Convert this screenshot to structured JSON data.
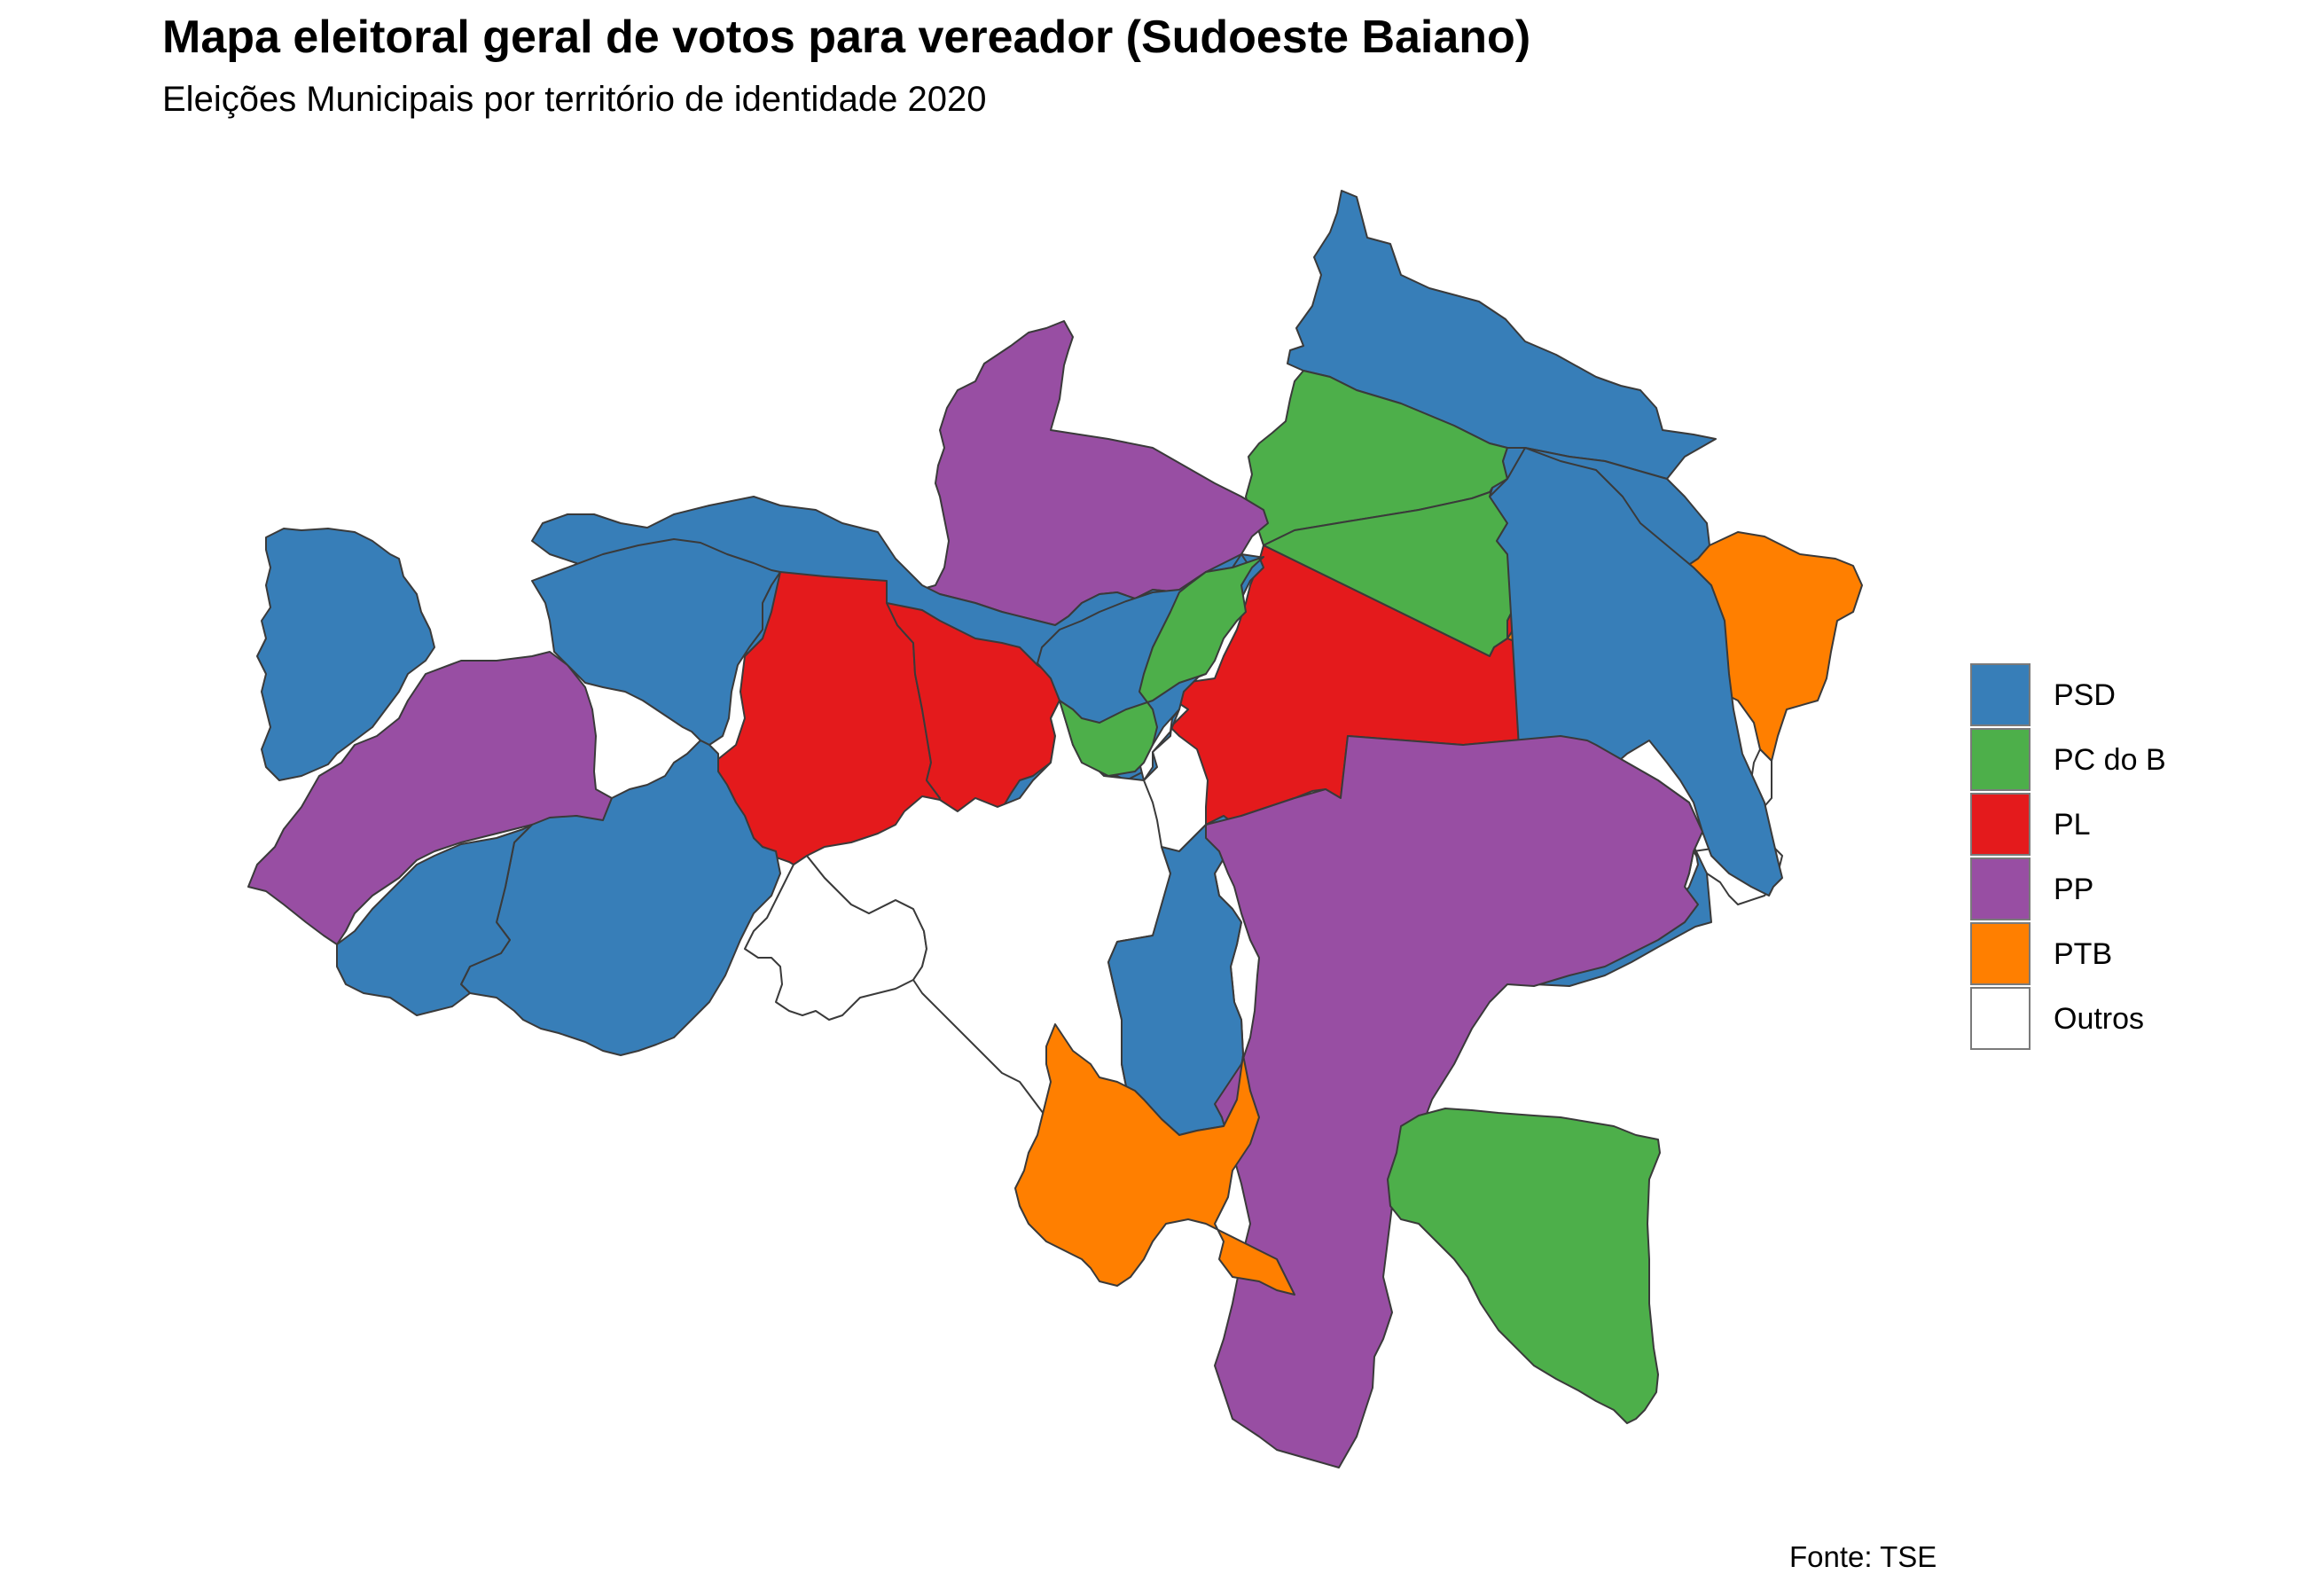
{
  "title": "Mapa eleitoral geral de votos para vereador (Sudoeste Baiano)",
  "subtitle": "Eleições Municipais por território de identidade 2020",
  "caption": "Fonte: TSE",
  "colors": {
    "PSD": "#377eb8",
    "PC do B": "#4daf4a",
    "PL": "#e41a1c",
    "PP": "#984ea3",
    "PTB": "#ff7f00",
    "Outros": "#ffffff"
  },
  "legend": [
    {
      "party": "PSD",
      "label": "PSD",
      "color": "#377eb8"
    },
    {
      "party": "PC do B",
      "label": "PC do B",
      "color": "#4daf4a"
    },
    {
      "party": "PL",
      "label": "PL",
      "color": "#e41a1c"
    },
    {
      "party": "PP",
      "label": "PP",
      "color": "#984ea3"
    },
    {
      "party": "PTB",
      "label": "PTB",
      "color": "#ff7f00"
    },
    {
      "party": "Outros",
      "label": "Outros",
      "color": "#ffffff"
    }
  ],
  "regions": [
    {
      "party": "PSD"
    },
    {
      "party": "PC do B"
    },
    {
      "party": "PSD"
    },
    {
      "party": "PC do B"
    },
    {
      "party": "PTB"
    },
    {
      "party": "PL"
    },
    {
      "party": "Outros"
    },
    {
      "party": "PP"
    },
    {
      "party": "PSD"
    },
    {
      "party": "PL"
    },
    {
      "party": "PL"
    },
    {
      "party": "PSD"
    },
    {
      "party": "PSD"
    },
    {
      "party": "PP"
    },
    {
      "party": "PSD"
    },
    {
      "party": "PSD"
    },
    {
      "party": "PSD"
    },
    {
      "party": "PSD"
    },
    {
      "party": "Outros"
    },
    {
      "party": "Outros"
    },
    {
      "party": "PSD"
    },
    {
      "party": "PSD"
    },
    {
      "party": "PC do B"
    },
    {
      "party": "PP"
    },
    {
      "party": "PTB"
    },
    {
      "party": "PC do B"
    }
  ]
}
